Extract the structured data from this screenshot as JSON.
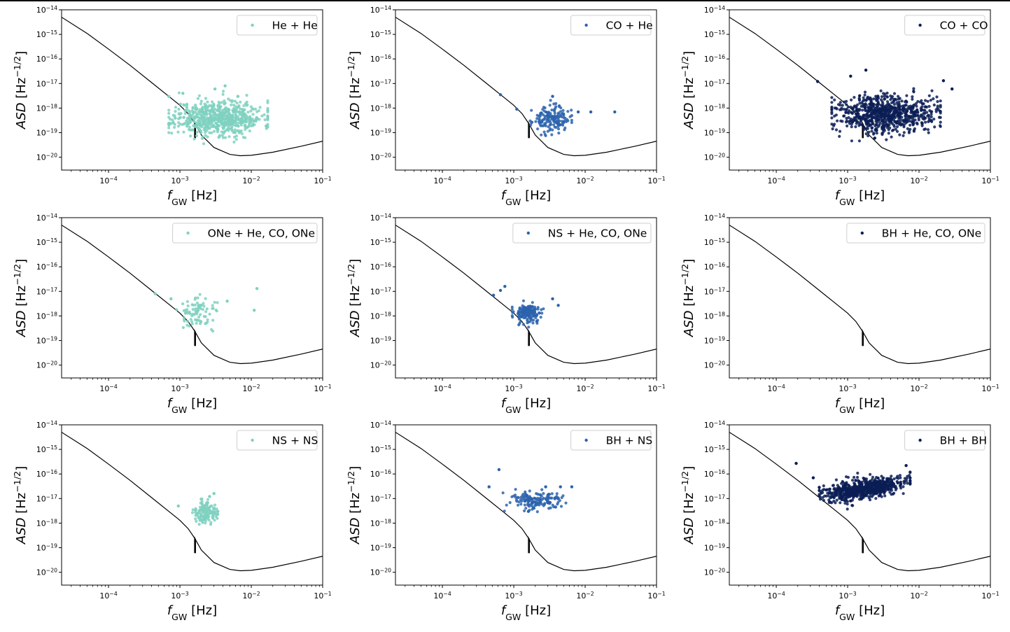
{
  "chart_data": [
    {
      "type": "scatter",
      "legend": "He + He",
      "color": "#7fd1bf",
      "xlabel": {
        "main": "f",
        "sub": "GW",
        "unit": "[Hz]"
      },
      "ylabel": {
        "main": "ASD",
        "unit": "[Hz",
        "sup": "−1/2",
        "close": "]"
      },
      "xscale": "log",
      "yscale": "log",
      "xlim": [
        2.2e-05,
        0.1
      ],
      "ylim": [
        3e-21,
        1e-14
      ],
      "legend_position": "top-right",
      "grid": false,
      "cloud": {
        "f_min": 0.0007,
        "f_max": 0.017,
        "asd_center": 4e-19,
        "spread_dex": 0.35,
        "n": 650,
        "seed": 11
      },
      "points": [
        {
          "x": 0.0007,
          "y": 3e-18
        },
        {
          "x": 0.0011,
          "y": 4e-18
        },
        {
          "x": 0.0031,
          "y": 6e-18
        },
        {
          "x": 0.0043,
          "y": 8e-18
        },
        {
          "x": 0.0065,
          "y": 3e-18
        },
        {
          "x": 0.017,
          "y": 8e-19
        }
      ]
    },
    {
      "type": "scatter",
      "legend": "CO + He",
      "color": "#2b63ad",
      "xlabel": {
        "main": "f",
        "sub": "GW",
        "unit": "[Hz]"
      },
      "ylabel": {
        "main": "ASD",
        "unit": "[Hz",
        "sup": "−1/2",
        "close": "]"
      },
      "xscale": "log",
      "yscale": "log",
      "xlim": [
        2.2e-05,
        0.1
      ],
      "ylim": [
        3e-21,
        1e-14
      ],
      "legend_position": "top-right",
      "grid": false,
      "cloud": {
        "f_min": 0.0017,
        "f_max": 0.0065,
        "asd_center": 3.5e-19,
        "spread_dex": 0.25,
        "n": 160,
        "seed": 23
      },
      "points": [
        {
          "x": 0.00065,
          "y": 3.5e-18
        },
        {
          "x": 0.0011,
          "y": 9e-19
        },
        {
          "x": 0.0035,
          "y": 3e-18
        },
        {
          "x": 0.008,
          "y": 7e-19
        },
        {
          "x": 0.012,
          "y": 7e-19
        },
        {
          "x": 0.026,
          "y": 7e-19
        }
      ]
    },
    {
      "type": "scatter",
      "legend": "CO + CO",
      "color": "#0b1d55",
      "xlabel": {
        "main": "f",
        "sub": "GW",
        "unit": "[Hz]"
      },
      "ylabel": {
        "main": "ASD",
        "unit": "[Hz",
        "sup": "−1/2",
        "close": "]"
      },
      "xscale": "log",
      "yscale": "log",
      "xlim": [
        2.2e-05,
        0.1
      ],
      "ylim": [
        3e-21,
        1e-14
      ],
      "legend_position": "top-right",
      "grid": false,
      "cloud": {
        "f_min": 0.0006,
        "f_max": 0.02,
        "asd_center": 6e-19,
        "spread_dex": 0.38,
        "n": 750,
        "seed": 37
      },
      "points": [
        {
          "x": 0.00038,
          "y": 1.2e-17
        },
        {
          "x": 0.0018,
          "y": 3.5e-17
        },
        {
          "x": 0.0011,
          "y": 2e-17
        },
        {
          "x": 0.022,
          "y": 1.3e-17
        },
        {
          "x": 0.029,
          "y": 6e-18
        },
        {
          "x": 0.0024,
          "y": 6e-20
        }
      ]
    },
    {
      "type": "scatter",
      "legend": "ONe + He, CO, ONe",
      "color": "#7fd1bf",
      "xlabel": {
        "main": "f",
        "sub": "GW",
        "unit": "[Hz]"
      },
      "ylabel": {
        "main": "ASD",
        "unit": "[Hz",
        "sup": "−1/2",
        "close": "]"
      },
      "xscale": "log",
      "yscale": "log",
      "xlim": [
        2.2e-05,
        0.1
      ],
      "ylim": [
        3e-21,
        1e-14
      ],
      "legend_position": "top-right",
      "grid": false,
      "cloud": {
        "f_min": 0.0009,
        "f_max": 0.004,
        "asd_center": 1.4e-18,
        "spread_dex": 0.3,
        "n": 85,
        "seed": 41
      },
      "points": [
        {
          "x": 0.00045,
          "y": 8e-18
        },
        {
          "x": 0.00075,
          "y": 5e-18
        },
        {
          "x": 0.0012,
          "y": 1.3e-18
        },
        {
          "x": 0.0046,
          "y": 4e-18
        },
        {
          "x": 0.011,
          "y": 1.7e-18
        },
        {
          "x": 0.012,
          "y": 1.3e-17
        }
      ]
    },
    {
      "type": "scatter",
      "legend": "NS + He, CO, ONe",
      "color": "#2b63ad",
      "xlabel": {
        "main": "f",
        "sub": "GW",
        "unit": "[Hz]"
      },
      "ylabel": {
        "main": "ASD",
        "unit": "[Hz",
        "sup": "−1/2",
        "close": "]"
      },
      "xscale": "log",
      "yscale": "log",
      "xlim": [
        2.2e-05,
        0.1
      ],
      "ylim": [
        3e-21,
        1e-14
      ],
      "legend_position": "top-right",
      "grid": false,
      "cloud": {
        "f_min": 0.00095,
        "f_max": 0.0026,
        "asd_center": 1.3e-18,
        "spread_dex": 0.2,
        "n": 160,
        "seed": 53
      },
      "points": [
        {
          "x": 0.00052,
          "y": 7e-18
        },
        {
          "x": 0.00065,
          "y": 1.1e-17
        },
        {
          "x": 0.00075,
          "y": 1.6e-17
        },
        {
          "x": 0.0035,
          "y": 5e-18
        },
        {
          "x": 0.0042,
          "y": 2.7e-18
        },
        {
          "x": 0.0021,
          "y": 6e-19
        }
      ]
    },
    {
      "type": "scatter",
      "legend": "BH + He, CO, ONe",
      "color": "#0b1d55",
      "xlabel": {
        "main": "f",
        "sub": "GW",
        "unit": "[Hz]"
      },
      "ylabel": {
        "main": "ASD",
        "unit": "[Hz",
        "sup": "−1/2",
        "close": "]"
      },
      "xscale": "log",
      "yscale": "log",
      "xlim": [
        2.2e-05,
        0.1
      ],
      "ylim": [
        3e-21,
        1e-14
      ],
      "legend_position": "top-right",
      "grid": false,
      "cloud": {
        "f_min": 0.001,
        "f_max": 0.001,
        "asd_center": 1e-18,
        "spread_dex": 0.1,
        "n": 0,
        "seed": 1
      },
      "points": []
    },
    {
      "type": "scatter",
      "legend": "NS + NS",
      "color": "#7fd1bf",
      "xlabel": {
        "main": "f",
        "sub": "GW",
        "unit": "[Hz]"
      },
      "ylabel": {
        "main": "ASD",
        "unit": "[Hz",
        "sup": "−1/2",
        "close": "]"
      },
      "xscale": "log",
      "yscale": "log",
      "xlim": [
        2.2e-05,
        0.1
      ],
      "ylim": [
        3e-21,
        1e-14
      ],
      "legend_position": "top-right",
      "grid": false,
      "cloud": {
        "f_min": 0.0015,
        "f_max": 0.0034,
        "asd_center": 2.5e-18,
        "spread_dex": 0.22,
        "n": 130,
        "seed": 67
      },
      "points": [
        {
          "x": 0.00095,
          "y": 5e-18
        },
        {
          "x": 0.003,
          "y": 1.6e-17
        },
        {
          "x": 0.0026,
          "y": 1.2e-17
        },
        {
          "x": 0.0022,
          "y": 1.4e-18
        },
        {
          "x": 0.0034,
          "y": 3e-18
        }
      ]
    },
    {
      "type": "scatter",
      "legend": "BH + NS",
      "color": "#2b63ad",
      "xlabel": {
        "main": "f",
        "sub": "GW",
        "unit": "[Hz]"
      },
      "ylabel": {
        "main": "ASD",
        "unit": "[Hz",
        "sup": "−1/2",
        "close": "]"
      },
      "xscale": "log",
      "yscale": "log",
      "xlim": [
        2.2e-05,
        0.1
      ],
      "ylim": [
        3e-21,
        1e-14
      ],
      "legend_position": "top-right",
      "grid": false,
      "cloud": {
        "f_min": 0.0007,
        "f_max": 0.0065,
        "asd_center": 8e-18,
        "spread_dex": 0.2,
        "n": 150,
        "seed": 71
      },
      "points": [
        {
          "x": 0.00062,
          "y": 1.5e-16
        },
        {
          "x": 0.00045,
          "y": 3e-17
        },
        {
          "x": 0.0045,
          "y": 3e-17
        },
        {
          "x": 0.0065,
          "y": 3e-17
        },
        {
          "x": 0.0016,
          "y": 3e-18
        },
        {
          "x": 0.0028,
          "y": 3e-17
        }
      ]
    },
    {
      "type": "scatter",
      "legend": "BH + BH",
      "color": "#0b1d55",
      "xlabel": {
        "main": "f",
        "sub": "GW",
        "unit": "[Hz]"
      },
      "ylabel": {
        "main": "ASD",
        "unit": "[Hz",
        "sup": "−1/2",
        "close": "]"
      },
      "xscale": "log",
      "yscale": "log",
      "xlim": [
        2.2e-05,
        0.1
      ],
      "ylim": [
        3e-21,
        1e-14
      ],
      "legend_position": "top-right",
      "grid": false,
      "cloud": {
        "f_min": 0.0004,
        "f_max": 0.0075,
        "asd_center": 2.5e-17,
        "spread_dex": 0.2,
        "n": 700,
        "seed": 89,
        "slope": 0.45
      },
      "points": [
        {
          "x": 0.00019,
          "y": 2.7e-16
        },
        {
          "x": 0.00033,
          "y": 7e-17
        },
        {
          "x": 0.0066,
          "y": 2.2e-16
        },
        {
          "x": 0.0075,
          "y": 7e-17
        },
        {
          "x": 0.0011,
          "y": 8e-18
        }
      ]
    }
  ],
  "sensitivity_curve": {
    "line_color": "#000000",
    "points": [
      {
        "x": 2.2e-05,
        "y": 5e-15
      },
      {
        "x": 5e-05,
        "y": 1.1e-15
      },
      {
        "x": 0.0001,
        "y": 2.5e-16
      },
      {
        "x": 0.0002,
        "y": 5.5e-17
      },
      {
        "x": 0.0004,
        "y": 1.1e-17
      },
      {
        "x": 0.0007,
        "y": 3e-18
      },
      {
        "x": 0.001,
        "y": 1.3e-18
      },
      {
        "x": 0.0013,
        "y": 6e-19
      },
      {
        "x": 0.0016,
        "y": 2.5e-19
      },
      {
        "x": 0.002,
        "y": 8e-20
      },
      {
        "x": 0.003,
        "y": 2.5e-20
      },
      {
        "x": 0.005,
        "y": 1.3e-20
      },
      {
        "x": 0.007,
        "y": 1.15e-20
      },
      {
        "x": 0.01,
        "y": 1.2e-20
      },
      {
        "x": 0.02,
        "y": 1.6e-20
      },
      {
        "x": 0.05,
        "y": 2.8e-20
      },
      {
        "x": 0.1,
        "y": 4.5e-20
      }
    ],
    "spikes": [
      {
        "x": 0.0016,
        "y_top": 2.8e-19,
        "y_bottom": 6e-20
      },
      {
        "x": 0.00163,
        "y_top": 2.5e-19,
        "y_bottom": 6e-20
      },
      {
        "x": 0.00166,
        "y_top": 2.3e-19,
        "y_bottom": 6e-20
      }
    ]
  },
  "axis_ticks": {
    "x": [
      {
        "value": 0.0001,
        "base": "10",
        "exp": "−4"
      },
      {
        "value": 0.001,
        "base": "10",
        "exp": "−3"
      },
      {
        "value": 0.01,
        "base": "10",
        "exp": "−2"
      },
      {
        "value": 0.1,
        "base": "10",
        "exp": "−1"
      }
    ],
    "y": [
      {
        "value": 1e-20,
        "base": "10",
        "exp": "−20"
      },
      {
        "value": 1e-19,
        "base": "10",
        "exp": "−19"
      },
      {
        "value": 1e-18,
        "base": "10",
        "exp": "−18"
      },
      {
        "value": 1e-17,
        "base": "10",
        "exp": "−17"
      },
      {
        "value": 1e-16,
        "base": "10",
        "exp": "−16"
      },
      {
        "value": 1e-15,
        "base": "10",
        "exp": "−15"
      },
      {
        "value": 1e-14,
        "base": "10",
        "exp": "−14"
      }
    ]
  }
}
